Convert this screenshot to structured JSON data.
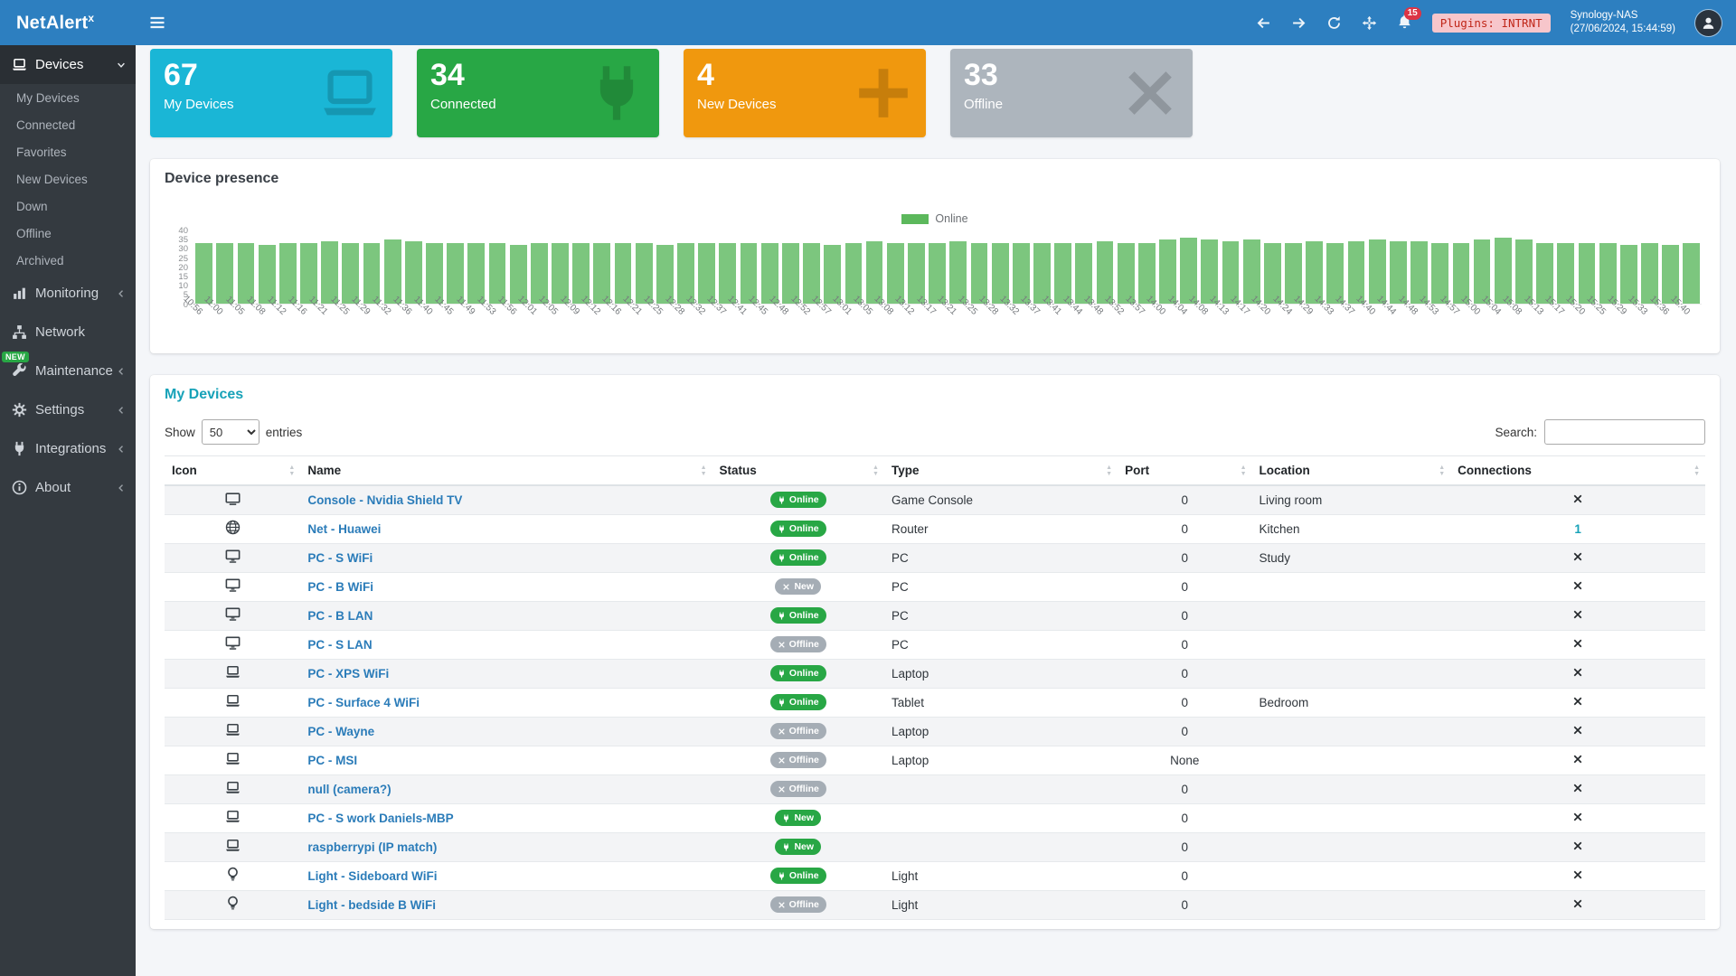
{
  "colors": {
    "topbar": "#2d7fc0",
    "sidebar": "#343a40",
    "accent": "#17a2b8",
    "link": "#2b7cb9",
    "badge_online": "#28a745",
    "badge_offline": "#a5adb5",
    "notif": "#dc3545",
    "plugins_bg": "#f7c6cb",
    "plugins_text": "#c02618"
  },
  "topbar": {
    "brand": "NetAlert",
    "brand_sup": "x",
    "notif_count": "15",
    "plugins_badge": "Plugins: INTRNT",
    "nas_name": "Synology-NAS",
    "nas_time": "(27/06/2024, 15:44:59)"
  },
  "sidebar": {
    "items": [
      {
        "label": "Devices",
        "icon": "laptop",
        "chevron": "down",
        "active": true,
        "children": [
          "My Devices",
          "Connected",
          "Favorites",
          "New Devices",
          "Down",
          "Offline",
          "Archived"
        ]
      },
      {
        "label": "Monitoring",
        "icon": "chart",
        "chevron": "left"
      },
      {
        "label": "Network",
        "icon": "network"
      },
      {
        "label": "Maintenance",
        "icon": "wrench",
        "chevron": "left",
        "badge": "NEW"
      },
      {
        "label": "Settings",
        "icon": "gear",
        "chevron": "left"
      },
      {
        "label": "Integrations",
        "icon": "plug",
        "chevron": "left"
      },
      {
        "label": "About",
        "icon": "info",
        "chevron": "left"
      }
    ]
  },
  "page": {
    "title": "Devices"
  },
  "stats": [
    {
      "value": "67",
      "label": "My Devices",
      "icon": "laptop",
      "bg": "#1ab6d6"
    },
    {
      "value": "34",
      "label": "Connected",
      "icon": "plug",
      "bg": "#28a745"
    },
    {
      "value": "4",
      "label": "New Devices",
      "icon": "plus",
      "bg": "#f0980e"
    },
    {
      "value": "33",
      "label": "Offline",
      "icon": "x",
      "bg": "#adb5bd"
    }
  ],
  "chart_data": {
    "type": "bar",
    "title": "Device presence",
    "legend": [
      {
        "label": "Online",
        "color": "#5cb85c"
      }
    ],
    "ylim": [
      0,
      40
    ],
    "yticks": [
      0,
      5,
      10,
      15,
      20,
      25,
      30,
      35,
      40
    ],
    "grid": false,
    "x": [
      "10:56",
      "11:00",
      "11:05",
      "11:08",
      "11:12",
      "11:16",
      "11:21",
      "11:25",
      "11:29",
      "11:32",
      "11:36",
      "11:40",
      "11:45",
      "11:49",
      "11:53",
      "11:56",
      "12:01",
      "12:05",
      "12:09",
      "12:12",
      "12:16",
      "12:21",
      "12:25",
      "12:28",
      "12:32",
      "12:37",
      "12:41",
      "12:45",
      "12:48",
      "12:52",
      "12:57",
      "13:01",
      "13:05",
      "13:08",
      "13:12",
      "13:17",
      "13:21",
      "13:25",
      "13:28",
      "13:32",
      "13:37",
      "13:41",
      "13:44",
      "13:48",
      "13:52",
      "13:57",
      "14:00",
      "14:04",
      "14:08",
      "14:13",
      "14:17",
      "14:20",
      "14:24",
      "14:29",
      "14:33",
      "14:37",
      "14:40",
      "14:44",
      "14:48",
      "14:53",
      "14:57",
      "15:00",
      "15:04",
      "15:08",
      "15:13",
      "15:17",
      "15:20",
      "15:25",
      "15:29",
      "15:33",
      "15:36",
      "15:40"
    ],
    "series": [
      {
        "name": "Online",
        "color": "#7cc67e",
        "values": [
          33,
          33,
          33,
          32,
          33,
          33,
          34,
          33,
          33,
          35,
          34,
          33,
          33,
          33,
          33,
          32,
          33,
          33,
          33,
          33,
          33,
          33,
          32,
          33,
          33,
          33,
          33,
          33,
          33,
          33,
          32,
          33,
          34,
          33,
          33,
          33,
          34,
          33,
          33,
          33,
          33,
          33,
          33,
          34,
          33,
          33,
          35,
          36,
          35,
          34,
          35,
          33,
          33,
          34,
          33,
          34,
          35,
          34,
          34,
          33,
          33,
          35,
          36,
          35,
          33,
          33,
          33,
          33,
          32,
          33,
          32,
          33
        ]
      }
    ]
  },
  "devices_panel": {
    "title": "My Devices",
    "show_label": "Show",
    "page_length": "50",
    "entries_label": "entries",
    "search_label": "Search:",
    "columns": [
      {
        "label": "Icon",
        "align": "center"
      },
      {
        "label": "Name"
      },
      {
        "label": "Status"
      },
      {
        "label": "Type"
      },
      {
        "label": "Port"
      },
      {
        "label": "Location"
      },
      {
        "label": "Connections"
      }
    ],
    "rows": [
      {
        "icon": "tv",
        "name": "Console - Nvidia Shield TV",
        "status": "Online",
        "status_kind": "online",
        "type": "Game Console",
        "port": "0",
        "location": "Living room",
        "connections": "x"
      },
      {
        "icon": "globe",
        "name": "Net - Huawei",
        "status": "Online",
        "status_kind": "online",
        "type": "Router",
        "port": "0",
        "location": "Kitchen",
        "connections": "1"
      },
      {
        "icon": "desktop",
        "name": "PC - S WiFi",
        "status": "Online",
        "status_kind": "online",
        "type": "PC",
        "port": "0",
        "location": "Study",
        "connections": "x"
      },
      {
        "icon": "desktop",
        "name": "PC - B WiFi",
        "status": "New",
        "status_kind": "new-offline",
        "type": "PC",
        "port": "0",
        "location": "",
        "connections": "x"
      },
      {
        "icon": "desktop",
        "name": "PC - B LAN",
        "status": "Online",
        "status_kind": "online",
        "type": "PC",
        "port": "0",
        "location": "",
        "connections": "x"
      },
      {
        "icon": "desktop",
        "name": "PC - S LAN",
        "status": "Offline",
        "status_kind": "offline",
        "type": "PC",
        "port": "0",
        "location": "",
        "connections": "x"
      },
      {
        "icon": "laptop",
        "name": "PC - XPS WiFi",
        "status": "Online",
        "status_kind": "online",
        "type": "Laptop",
        "port": "0",
        "location": "",
        "connections": "x"
      },
      {
        "icon": "laptop",
        "name": "PC - Surface 4 WiFi",
        "status": "Online",
        "status_kind": "online",
        "type": "Tablet",
        "port": "0",
        "location": "Bedroom",
        "connections": "x"
      },
      {
        "icon": "laptop",
        "name": "PC - Wayne",
        "status": "Offline",
        "status_kind": "offline",
        "type": "Laptop",
        "port": "0",
        "location": "",
        "connections": "x"
      },
      {
        "icon": "laptop",
        "name": "PC - MSI",
        "status": "Offline",
        "status_kind": "offline",
        "type": "Laptop",
        "port": "None",
        "location": "",
        "connections": "x"
      },
      {
        "icon": "laptop",
        "name": "null (camera?)",
        "status": "Offline",
        "status_kind": "offline",
        "type": "",
        "port": "0",
        "location": "",
        "connections": "x"
      },
      {
        "icon": "laptop",
        "name": "PC - S work Daniels-MBP",
        "status": "New",
        "status_kind": "new-online",
        "type": "",
        "port": "0",
        "location": "",
        "connections": "x"
      },
      {
        "icon": "laptop",
        "name": "raspberrypi (IP match)",
        "status": "New",
        "status_kind": "new-online",
        "type": "",
        "port": "0",
        "location": "",
        "connections": "x"
      },
      {
        "icon": "bulb",
        "name": "Light - Sideboard WiFi",
        "status": "Online",
        "status_kind": "online",
        "type": "Light",
        "port": "0",
        "location": "",
        "connections": "x"
      },
      {
        "icon": "bulb",
        "name": "Light - bedside B WiFi",
        "status": "Offline",
        "status_kind": "offline",
        "type": "Light",
        "port": "0",
        "location": "",
        "connections": "x"
      }
    ]
  }
}
